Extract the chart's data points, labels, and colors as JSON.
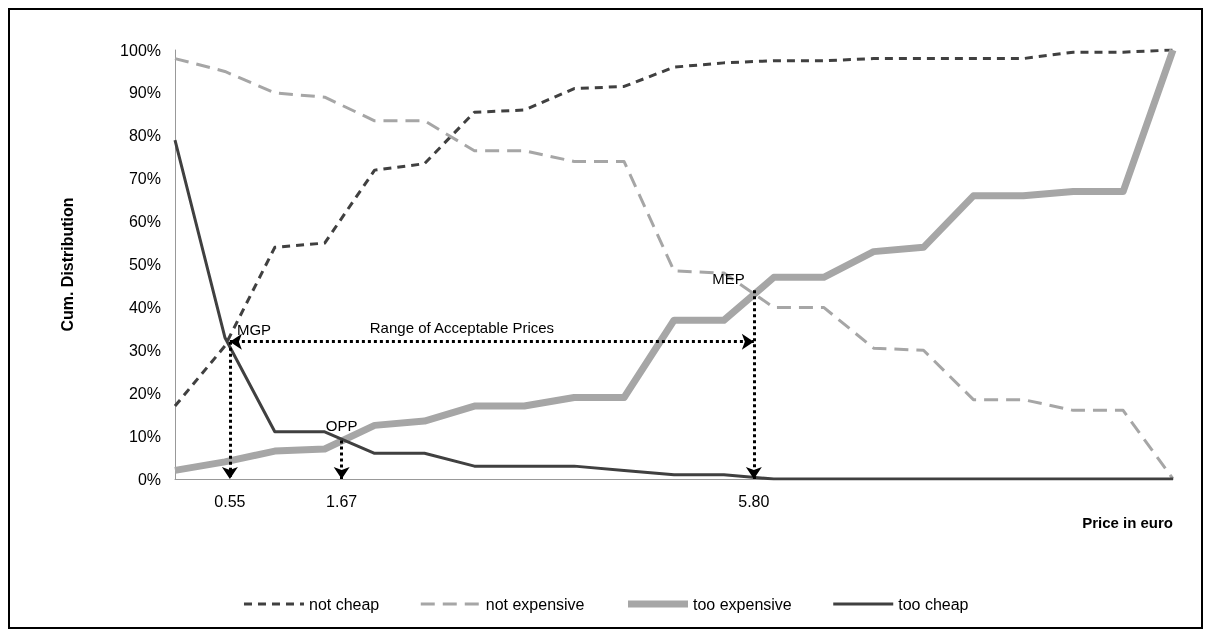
{
  "chart_data": {
    "type": "line",
    "xlabel": "Price in euro",
    "ylabel": "Cum. Distribution",
    "x": [
      0,
      0.5,
      1,
      1.5,
      2,
      2.5,
      3,
      3.5,
      4,
      4.5,
      5,
      5.5,
      6,
      6.5,
      7,
      7.5,
      8,
      8.5,
      9,
      9.5,
      10
    ],
    "series": [
      {
        "name": "not cheap",
        "color": "#404040",
        "line_style": "dashed",
        "values": [
          17,
          31,
          54,
          55,
          72,
          73.5,
          85.5,
          86,
          91,
          91.5,
          96,
          97,
          97.5,
          97.5,
          98,
          98,
          98,
          98,
          99.5,
          99.5,
          100
        ]
      },
      {
        "name": "not expensive",
        "color": "#a6a6a6",
        "line_style": "dashed",
        "values": [
          98,
          95,
          90,
          89,
          83.5,
          83.5,
          76.5,
          76.5,
          74,
          74,
          48.5,
          48,
          40,
          40,
          30.5,
          30,
          18.5,
          18.5,
          16,
          16,
          0
        ]
      },
      {
        "name": "too expensive",
        "color": "#a6a6a6",
        "line_style": "solid",
        "values": [
          2,
          4,
          6.5,
          7,
          12.5,
          13.5,
          17,
          17,
          19,
          19,
          37,
          37,
          47,
          47,
          53,
          54,
          66,
          66,
          67,
          67,
          100
        ]
      },
      {
        "name": "too cheap",
        "color": "#404040",
        "line_style": "solid",
        "values": [
          79,
          33,
          11,
          11,
          6,
          6,
          3,
          3,
          3,
          2,
          1,
          1,
          0,
          0,
          0,
          0,
          0,
          0,
          0,
          0,
          0
        ]
      }
    ],
    "xlim": [
      0,
      10
    ],
    "ylim": [
      0,
      100
    ],
    "xticks": [
      {
        "value": 0.55,
        "label": "0.55"
      },
      {
        "value": 1.67,
        "label": "1.67"
      },
      {
        "value": 5.8,
        "label": "5.80"
      }
    ],
    "yticks": [
      {
        "value": 0,
        "label": "0%"
      },
      {
        "value": 10,
        "label": "10%"
      },
      {
        "value": 20,
        "label": "20%"
      },
      {
        "value": 30,
        "label": "30%"
      },
      {
        "value": 40,
        "label": "40%"
      },
      {
        "value": 50,
        "label": "50%"
      },
      {
        "value": 60,
        "label": "60%"
      },
      {
        "value": 70,
        "label": "70%"
      },
      {
        "value": 80,
        "label": "80%"
      },
      {
        "value": 90,
        "label": "90%"
      },
      {
        "value": 100,
        "label": "100%"
      }
    ],
    "annotations": [
      {
        "text": "MGP",
        "x": 0.55,
        "y": 32
      },
      {
        "text": "OPP",
        "x": 1.67,
        "y": 9
      },
      {
        "text": "MEP",
        "x": 5.8,
        "y": 44
      },
      "Range of Acceptable Prices"
    ],
    "grid": false,
    "legend": "bottom",
    "marker": "none"
  }
}
